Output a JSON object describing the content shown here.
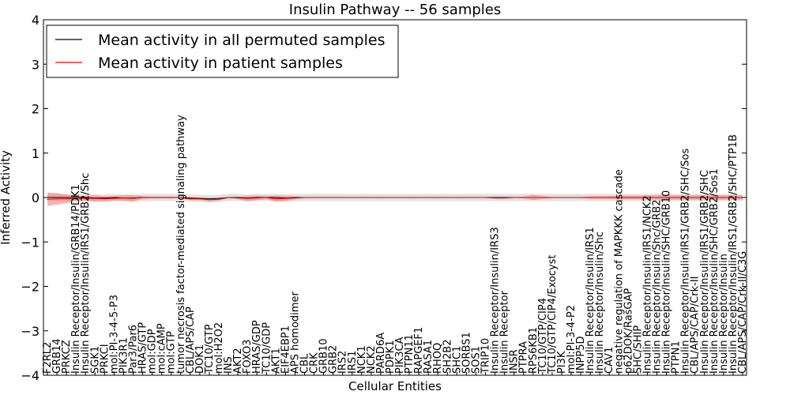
{
  "chart_data": {
    "type": "line",
    "title": "Insulin Pathway -- 56 samples",
    "xlabel": "Cellular Entities",
    "ylabel": "Inferred Activity",
    "ylim": [
      -4,
      4
    ],
    "yticks": [
      "−4",
      "−3",
      "−2",
      "−1",
      "0",
      "1",
      "2",
      "3",
      "4"
    ],
    "ytick_values": [
      -4,
      -3,
      -2,
      -1,
      0,
      1,
      2,
      3,
      4
    ],
    "legend": {
      "placement": "top-left",
      "entries": [
        {
          "label": "Mean activity in all permuted samples",
          "color": "#000000"
        },
        {
          "label": "Mean activity in patient samples",
          "color": "#ff0000"
        }
      ]
    },
    "categories": [
      "F2RL2",
      "GRB14",
      "PRKCZ",
      "Insulin Receptor/Insulin/GRB14/PDK1",
      "Insulin Receptor/Insulin/IRS1/GRB2/Shc",
      "SGK1",
      "PRKCI",
      "mol:PI-3-4-5-P3",
      "PIK3R1",
      "Par3/Par6",
      "HRAS/GTP",
      "mol:GDP",
      "mol:cAMP",
      "mol:GTP",
      "tumor necrosis factor-mediated signaling pathway",
      "CBL/APS/CAP",
      "DOK1",
      "TC10/GTP",
      "mol:H2O2",
      "INS",
      "AKT2",
      "FOXO3",
      "HRAS/GDP",
      "TC10/GDP",
      "AKT1",
      "EIF4EBP1",
      "APS homodimer",
      "CBL",
      "CRK",
      "GRB10",
      "GRB2",
      "IRS2",
      "IRS1",
      "NCK1",
      "NCK2",
      "PARD6A",
      "PDPK1",
      "PIK3CA",
      "PTPN11",
      "RAPGEF1",
      "RASA1",
      "RHOQ",
      "SH2B2",
      "SHC1",
      "SORBS1",
      "SOS1",
      "TRIP10",
      "Insulin Receptor/Insulin/IRS3",
      "Insulin Receptor",
      "INSR",
      "PTPRA",
      "RPS6KB1",
      "TC10/GTP/CIP4",
      "TC10/GTP/CIP4/Exocyst",
      "PI3K",
      "mol:PI-3-4-P2",
      "INPP5D",
      "Insulin Receptor/Insulin/IRS1",
      "Insulin Receptor/Insulin/Shc",
      "CAV1",
      "negative regulation of MAPKKK cascade",
      "p62DOK/RasGAP",
      "SHC/SHIP",
      "Insulin Receptor/Insulin/IRS1/NCK2",
      "Insulin Receptor/Insulin/Shc/GRB2",
      "Insulin Receptor/Insulin/SHC/GRB10",
      "PTPN1",
      "Insulin Receptor/Insulin/IRS1/GRB2/SHC/Sos",
      "CBL/APS/CAP/Crk-II",
      "Insulin Receptor/Insulin/IRS1/GRB2/SHC",
      "Insulin Receptor/Insulin/SHC/GRB2/Sos1",
      "Insulin Receptor/Insulin",
      "Insulin Receptor/Insulin/IRS1/GRB2/SHC/PTP1B",
      "CBL/APS/CAP/Crk-II/C3G"
    ],
    "series": [
      {
        "name": "Mean activity in all permuted samples",
        "color": "#000000",
        "values": [
          0,
          0,
          0,
          0,
          0,
          -0.01,
          -0.01,
          0,
          -0.01,
          -0.01,
          0,
          0,
          0,
          0,
          0,
          -0.01,
          -0.02,
          -0.03,
          -0.02,
          0,
          0,
          -0.01,
          0,
          0,
          0,
          -0.01,
          0,
          0,
          0,
          0,
          0,
          0,
          0,
          0,
          0,
          0,
          0,
          0,
          0,
          0,
          0,
          0,
          0,
          0,
          0,
          0,
          0,
          0,
          0,
          0,
          0,
          0,
          0,
          0,
          0,
          0,
          0,
          0,
          0,
          0,
          0,
          0,
          0,
          0,
          0,
          0,
          0,
          0,
          0,
          0,
          0,
          0,
          0,
          0
        ],
        "band": 0.08
      },
      {
        "name": "Mean activity in patient samples",
        "color": "#ff0000",
        "values": [
          -0.04,
          -0.03,
          -0.03,
          -0.02,
          -0.02,
          -0.02,
          -0.03,
          -0.02,
          -0.01,
          -0.02,
          0,
          0,
          0,
          0,
          0,
          -0.03,
          -0.03,
          -0.05,
          -0.04,
          0,
          -0.01,
          -0.02,
          -0.01,
          0,
          -0.03,
          -0.02,
          -0.01,
          0,
          0,
          0,
          0,
          0,
          0,
          0,
          0,
          0,
          0,
          0,
          0,
          0,
          0,
          0,
          0,
          0,
          0,
          0,
          0,
          -0.01,
          -0.01,
          0,
          0,
          0,
          0,
          0,
          0,
          0,
          0,
          0,
          0,
          0,
          0,
          0,
          0,
          0,
          0,
          0,
          0,
          0,
          0,
          0,
          0,
          0,
          0,
          0
        ],
        "spread": [
          0.15,
          0.13,
          0.1,
          0.06,
          0.05,
          0.07,
          0.06,
          0.05,
          0.06,
          0.07,
          0.03,
          0.02,
          0.02,
          0.02,
          0.01,
          0.03,
          0.03,
          0.04,
          0.03,
          0.01,
          0.02,
          0.06,
          0.05,
          0.03,
          0.07,
          0.06,
          0.03,
          0.01,
          0.01,
          0.01,
          0.01,
          0.01,
          0.01,
          0.01,
          0.01,
          0.01,
          0.01,
          0.01,
          0.01,
          0.01,
          0.01,
          0.01,
          0.01,
          0.01,
          0.01,
          0.01,
          0.01,
          0.01,
          0.01,
          0.01,
          0.02,
          0.06,
          0.03,
          0.01,
          0.01,
          0.01,
          0.01,
          0.03,
          0.03,
          0.03,
          0.04,
          0.04,
          0.04,
          0.05,
          0.05,
          0.05,
          0.05,
          0.05,
          0.05,
          0.05,
          0.05,
          0.05,
          0.05,
          0.05
        ]
      }
    ]
  }
}
